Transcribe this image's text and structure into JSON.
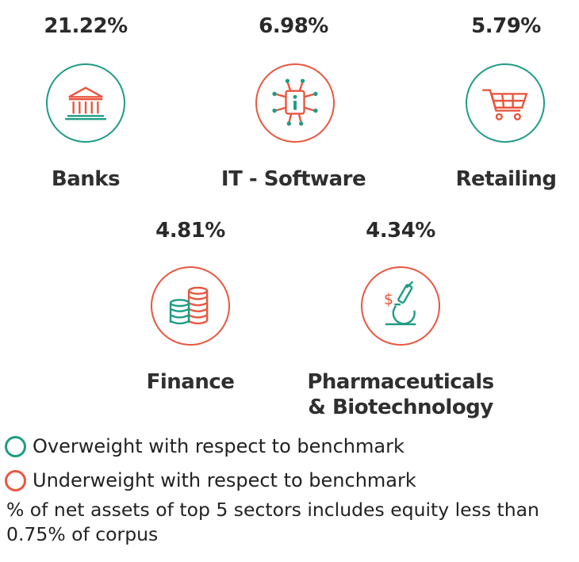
{
  "colors": {
    "overweight": "#1f9c84",
    "underweight": "#e8573f"
  },
  "sectors": [
    {
      "percent": "21.22%",
      "name": "Banks",
      "weighting": "overweight",
      "icon": "bank-building-icon"
    },
    {
      "percent": "6.98%",
      "name": "IT - Software",
      "weighting": "underweight",
      "icon": "circuit-chip-icon"
    },
    {
      "percent": "5.79%",
      "name": "Retailing",
      "weighting": "overweight",
      "icon": "shopping-cart-icon"
    },
    {
      "percent": "4.81%",
      "name": "Finance",
      "weighting": "underweight",
      "icon": "coin-stacks-icon"
    },
    {
      "percent": "4.34%",
      "name_line1": "Pharmaceuticals",
      "name_line2": "& Biotechnology",
      "weighting": "underweight",
      "icon": "microscope-icon"
    }
  ],
  "legend": {
    "overweight": "Overweight with respect to benchmark",
    "underweight": "Underweight with respect to benchmark"
  },
  "note": "% of net assets of top 5 sectors includes equity less than 0.75% of corpus"
}
